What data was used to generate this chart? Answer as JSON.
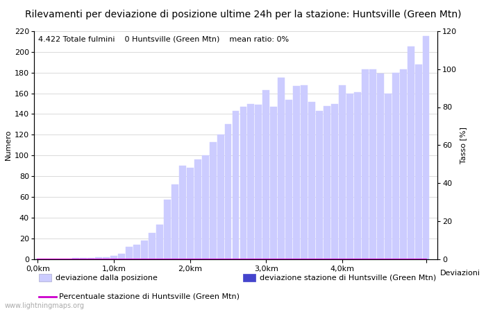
{
  "title": "Rilevamenti per deviazione di posizione ultime 24h per la stazione: Huntsville (Green Mtn)",
  "subtitle": "4.422 Totale fulmini    0 Huntsville (Green Mtn)    mean ratio: 0%",
  "ylabel_left": "Numero",
  "ylabel_right": "Tasso [%]",
  "xlabel_right": "Deviazioni",
  "watermark": "www.lightningmaps.org",
  "bar_values": [
    0,
    0,
    0,
    0,
    0,
    1,
    1,
    1,
    2,
    2,
    3,
    5,
    12,
    14,
    18,
    25,
    33,
    57,
    72,
    90,
    88,
    96,
    100,
    113,
    120,
    130,
    143,
    147,
    150,
    149,
    163,
    147,
    175,
    154,
    167,
    168,
    152,
    143,
    148,
    150,
    168,
    160,
    161,
    183,
    183,
    179,
    160,
    180,
    183,
    205,
    188,
    215
  ],
  "station_values": [
    0,
    0,
    0,
    0,
    0,
    0,
    0,
    0,
    0,
    0,
    0,
    0,
    0,
    0,
    0,
    0,
    0,
    0,
    0,
    0,
    0,
    0,
    0,
    0,
    0,
    0,
    0,
    0,
    0,
    0,
    0,
    0,
    0,
    0,
    0,
    0,
    0,
    0,
    0,
    0,
    0,
    0,
    0,
    0,
    0,
    0,
    0,
    0,
    0,
    0,
    0,
    0
  ],
  "ratio_values": [
    0,
    0,
    0,
    0,
    0,
    0,
    0,
    0,
    0,
    0,
    0,
    0,
    0,
    0,
    0,
    0,
    0,
    0,
    0,
    0,
    0,
    0,
    0,
    0,
    0,
    0,
    0,
    0,
    0,
    0,
    0,
    0,
    0,
    0,
    0,
    0,
    0,
    0,
    0,
    0,
    0,
    0,
    0,
    0,
    0,
    0,
    0,
    0,
    0,
    0,
    0,
    0
  ],
  "n_bars": 52,
  "x_tick_positions": [
    0,
    10,
    20,
    30,
    40,
    51
  ],
  "x_tick_labels": [
    "0,0km",
    "1,0km",
    "2,0km",
    "3,0km",
    "4,0km",
    ""
  ],
  "ylim_left": [
    0,
    220
  ],
  "ylim_right": [
    0,
    120
  ],
  "yticks_left": [
    0,
    20,
    40,
    60,
    80,
    100,
    120,
    140,
    160,
    180,
    200,
    220
  ],
  "yticks_right": [
    0,
    20,
    40,
    60,
    80,
    100,
    120
  ],
  "bar_color_light": "#ccccff",
  "bar_color_station": "#4444cc",
  "line_color_ratio": "#cc00cc",
  "background_color": "#ffffff",
  "title_fontsize": 10,
  "subtitle_fontsize": 8,
  "axis_fontsize": 8,
  "tick_fontsize": 8,
  "legend_fontsize": 8
}
